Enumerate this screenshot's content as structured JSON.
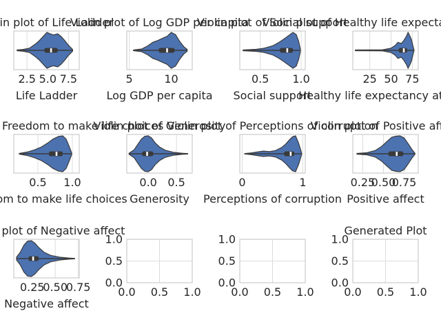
{
  "figure": {
    "title": "Generated Plot"
  },
  "colors": {
    "violin": "#4c72b0",
    "edge": "#3a3a3a",
    "box": "#3a3a3a",
    "median": "#ffffff",
    "grid": "#dcdcdc",
    "spine": "#cccccc",
    "text": "#262626"
  },
  "chart_data": [
    {
      "type": "violin",
      "title": "Violin plot of Life Ladder",
      "xlabel": "Life Ladder",
      "ylabel": "",
      "xlim": [
        0.9,
        8.8
      ],
      "xticks": [
        2.5,
        5.0,
        7.5
      ],
      "xtick_labels": [
        "2.5",
        "5.0",
        "7.5"
      ],
      "range": [
        1.3,
        8.0
      ],
      "q1": 4.6,
      "median": 5.4,
      "q3": 6.2,
      "density": [
        [
          1.3,
          0.02
        ],
        [
          2.0,
          0.05
        ],
        [
          2.8,
          0.12
        ],
        [
          3.5,
          0.35
        ],
        [
          4.0,
          0.55
        ],
        [
          4.5,
          0.8
        ],
        [
          4.9,
          1.0
        ],
        [
          5.3,
          0.92
        ],
        [
          5.7,
          0.86
        ],
        [
          6.2,
          0.92
        ],
        [
          6.6,
          0.78
        ],
        [
          7.1,
          0.52
        ],
        [
          7.5,
          0.28
        ],
        [
          8.0,
          0.05
        ]
      ]
    },
    {
      "type": "violin",
      "title": "Violin plot of Log GDP per capita",
      "xlabel": "Log GDP per capita",
      "ylabel": "",
      "xlim": [
        4.7,
        12.5
      ],
      "xticks": [
        5,
        10
      ],
      "xtick_labels": [
        "5",
        "10"
      ],
      "range": [
        5.5,
        11.9
      ],
      "q1": 8.5,
      "median": 9.5,
      "q3": 10.4,
      "density": [
        [
          5.5,
          0.02
        ],
        [
          6.5,
          0.08
        ],
        [
          7.2,
          0.25
        ],
        [
          7.8,
          0.45
        ],
        [
          8.4,
          0.55
        ],
        [
          9.0,
          0.68
        ],
        [
          9.5,
          0.78
        ],
        [
          10.0,
          1.0
        ],
        [
          10.5,
          0.88
        ],
        [
          11.0,
          0.5
        ],
        [
          11.5,
          0.2
        ],
        [
          11.9,
          0.05
        ]
      ]
    },
    {
      "type": "violin",
      "title": "Violin plot of Social support",
      "xlabel": "Social support",
      "ylabel": "",
      "xlim": [
        0.25,
        1.05
      ],
      "xticks": [
        0.5,
        1.0
      ],
      "xtick_labels": [
        "0.5",
        "1.0"
      ],
      "range": [
        0.29,
        0.99
      ],
      "q1": 0.74,
      "median": 0.83,
      "q3": 0.9,
      "density": [
        [
          0.29,
          0.02
        ],
        [
          0.45,
          0.06
        ],
        [
          0.55,
          0.12
        ],
        [
          0.65,
          0.25
        ],
        [
          0.72,
          0.42
        ],
        [
          0.78,
          0.6
        ],
        [
          0.84,
          0.8
        ],
        [
          0.9,
          1.0
        ],
        [
          0.94,
          0.88
        ],
        [
          0.97,
          0.5
        ],
        [
          0.99,
          0.08
        ]
      ]
    },
    {
      "type": "violin",
      "title": "Violin plot of Healthy life expectancy at birth",
      "xlabel": "Healthy life expectancy at birth",
      "ylabel": "",
      "xlim": [
        5,
        82
      ],
      "xticks": [
        25,
        50,
        75
      ],
      "xtick_labels": [
        "25",
        "50",
        "75"
      ],
      "range": [
        8,
        77
      ],
      "q1": 59,
      "median": 65,
      "q3": 69,
      "density": [
        [
          8,
          0.02
        ],
        [
          40,
          0.03
        ],
        [
          50,
          0.12
        ],
        [
          55,
          0.28
        ],
        [
          58,
          0.45
        ],
        [
          62,
          0.38
        ],
        [
          65,
          0.55
        ],
        [
          68,
          0.78
        ],
        [
          70,
          1.0
        ],
        [
          72,
          0.82
        ],
        [
          74,
          0.6
        ],
        [
          76,
          0.2
        ],
        [
          77,
          0.03
        ]
      ]
    },
    {
      "type": "violin",
      "title": "Violin plot of Freedom to make life choices",
      "xlabel": "Freedom to make life choices",
      "ylabel": "",
      "xlim": [
        0.15,
        1.1
      ],
      "xticks": [
        0.5,
        1.0
      ],
      "xtick_labels": [
        "0.5",
        "1.0"
      ],
      "range": [
        0.23,
        0.99
      ],
      "q1": 0.66,
      "median": 0.77,
      "q3": 0.86,
      "density": [
        [
          0.23,
          0.02
        ],
        [
          0.35,
          0.1
        ],
        [
          0.45,
          0.22
        ],
        [
          0.55,
          0.38
        ],
        [
          0.65,
          0.62
        ],
        [
          0.72,
          0.82
        ],
        [
          0.8,
          0.97
        ],
        [
          0.86,
          1.0
        ],
        [
          0.91,
          0.82
        ],
        [
          0.95,
          0.45
        ],
        [
          0.99,
          0.05
        ]
      ]
    },
    {
      "type": "violin",
      "title": "Violin plot of Generosity",
      "xlabel": "Generosity",
      "ylabel": "",
      "xlim": [
        -0.38,
        0.78
      ],
      "xticks": [
        0.0,
        0.5
      ],
      "xtick_labels": [
        "0.0",
        "0.5"
      ],
      "range": [
        -0.34,
        0.7
      ],
      "q1": -0.11,
      "median": -0.02,
      "q3": 0.09,
      "density": [
        [
          -0.34,
          0.03
        ],
        [
          -0.25,
          0.22
        ],
        [
          -0.18,
          0.55
        ],
        [
          -0.12,
          0.82
        ],
        [
          -0.06,
          0.98
        ],
        [
          0.0,
          1.0
        ],
        [
          0.06,
          0.88
        ],
        [
          0.12,
          0.62
        ],
        [
          0.2,
          0.38
        ],
        [
          0.3,
          0.2
        ],
        [
          0.45,
          0.08
        ],
        [
          0.6,
          0.03
        ],
        [
          0.7,
          0.01
        ]
      ]
    },
    {
      "type": "violin",
      "title": "Violin plot of Perceptions of corruption",
      "xlabel": "Perceptions of corruption",
      "ylabel": "",
      "xlim": [
        -0.04,
        1.04
      ],
      "xticks": [
        0,
        1
      ],
      "xtick_labels": [
        "0",
        "1"
      ],
      "range": [
        0.04,
        0.98
      ],
      "q1": 0.69,
      "median": 0.8,
      "q3": 0.86,
      "density": [
        [
          0.04,
          0.01
        ],
        [
          0.15,
          0.05
        ],
        [
          0.25,
          0.1
        ],
        [
          0.35,
          0.15
        ],
        [
          0.45,
          0.12
        ],
        [
          0.55,
          0.18
        ],
        [
          0.65,
          0.35
        ],
        [
          0.72,
          0.55
        ],
        [
          0.78,
          0.78
        ],
        [
          0.83,
          0.95
        ],
        [
          0.88,
          1.0
        ],
        [
          0.93,
          0.6
        ],
        [
          0.98,
          0.05
        ]
      ]
    },
    {
      "type": "violin",
      "title": "Violin plot of Positive affect",
      "xlabel": "Positive affect",
      "ylabel": "",
      "xlim": [
        0.13,
        0.92
      ],
      "xticks": [
        0.25,
        0.5,
        0.75
      ],
      "xtick_labels": [
        "0.25",
        "0.50",
        "0.75"
      ],
      "range": [
        0.18,
        0.88
      ],
      "q1": 0.56,
      "median": 0.66,
      "q3": 0.74,
      "density": [
        [
          0.18,
          0.02
        ],
        [
          0.3,
          0.06
        ],
        [
          0.4,
          0.18
        ],
        [
          0.48,
          0.42
        ],
        [
          0.55,
          0.72
        ],
        [
          0.6,
          0.92
        ],
        [
          0.65,
          0.98
        ],
        [
          0.7,
          1.0
        ],
        [
          0.75,
          0.88
        ],
        [
          0.8,
          0.55
        ],
        [
          0.85,
          0.2
        ],
        [
          0.88,
          0.03
        ]
      ]
    },
    {
      "type": "violin",
      "title": "Violin plot of Negative affect",
      "xlabel": "Negative affect",
      "ylabel": "",
      "xlim": [
        0.05,
        0.76
      ],
      "xticks": [
        0.25,
        0.5,
        0.75
      ],
      "xtick_labels": [
        "0.25",
        "0.50",
        "0.75"
      ],
      "range": [
        0.08,
        0.71
      ],
      "q1": 0.21,
      "median": 0.26,
      "q3": 0.32,
      "density": [
        [
          0.08,
          0.08
        ],
        [
          0.12,
          0.35
        ],
        [
          0.16,
          0.75
        ],
        [
          0.2,
          0.98
        ],
        [
          0.24,
          1.0
        ],
        [
          0.28,
          0.86
        ],
        [
          0.32,
          0.62
        ],
        [
          0.38,
          0.35
        ],
        [
          0.45,
          0.18
        ],
        [
          0.55,
          0.08
        ],
        [
          0.65,
          0.03
        ],
        [
          0.71,
          0.01
        ]
      ]
    },
    {
      "type": "empty",
      "title": "",
      "xlabel": "",
      "ylabel": "",
      "xlim": [
        0,
        1
      ],
      "ylim": [
        0,
        1
      ],
      "xticks": [
        0.0,
        0.5,
        1.0
      ],
      "xtick_labels": [
        "0.0",
        "0.5",
        "1.0"
      ],
      "yticks": [
        0.0,
        0.5,
        1.0
      ],
      "ytick_labels": [
        "0.0",
        "0.5",
        "1.0"
      ]
    },
    {
      "type": "empty",
      "title": "",
      "xlabel": "",
      "ylabel": "",
      "xlim": [
        0,
        1
      ],
      "ylim": [
        0,
        1
      ],
      "xticks": [
        0.0,
        0.5,
        1.0
      ],
      "xtick_labels": [
        "0.0",
        "0.5",
        "1.0"
      ],
      "yticks": [
        0.0,
        0.5,
        1.0
      ],
      "ytick_labels": [
        "0.0",
        "0.5",
        "1.0"
      ]
    },
    {
      "type": "empty",
      "title": "Generated Plot",
      "xlabel": "",
      "ylabel": "",
      "xlim": [
        0,
        1
      ],
      "ylim": [
        0,
        1
      ],
      "xticks": [
        0.0,
        0.5,
        1.0
      ],
      "xtick_labels": [
        "0.0",
        "0.5",
        "1.0"
      ],
      "yticks": [
        0.0,
        0.5,
        1.0
      ],
      "ytick_labels": [
        "0.0",
        "0.5",
        "1.0"
      ]
    }
  ]
}
